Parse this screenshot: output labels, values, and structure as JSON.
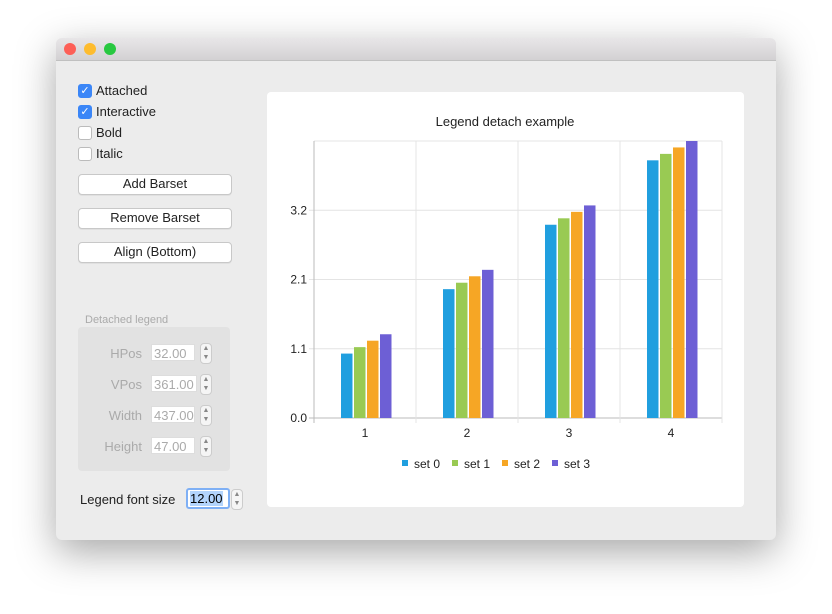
{
  "controls": {
    "checkboxes": [
      {
        "label": "Attached",
        "checked": true
      },
      {
        "label": "Interactive",
        "checked": true
      },
      {
        "label": "Bold",
        "checked": false
      },
      {
        "label": "Italic",
        "checked": false
      }
    ],
    "buttons": [
      "Add Barset",
      "Remove Barset",
      "Align (Bottom)"
    ],
    "detached_legend": {
      "title": "Detached legend",
      "fields": [
        {
          "label": "HPos",
          "value": "32.00"
        },
        {
          "label": "VPos",
          "value": "361.00"
        },
        {
          "label": "Width",
          "value": "437.00"
        },
        {
          "label": "Height",
          "value": "47.00"
        }
      ]
    },
    "font_size": {
      "label": "Legend font size",
      "value": "12.00"
    }
  },
  "chart_data": {
    "type": "bar",
    "title": "Legend detach example",
    "categories": [
      "1",
      "2",
      "3",
      "4"
    ],
    "series": [
      {
        "name": "set 0",
        "values": [
          1.0,
          2.0,
          3.0,
          4.0
        ],
        "color": "#209fdf"
      },
      {
        "name": "set 1",
        "values": [
          1.1,
          2.1,
          3.1,
          4.1
        ],
        "color": "#99ca53"
      },
      {
        "name": "set 2",
        "values": [
          1.2,
          2.2,
          3.2,
          4.2
        ],
        "color": "#f6a625"
      },
      {
        "name": "set 3",
        "values": [
          1.3,
          2.3,
          3.3,
          4.3
        ],
        "color": "#6d5fd5"
      }
    ],
    "ylim": [
      0,
      4.3
    ],
    "yticks": [
      "0.0",
      "1.1",
      "2.1",
      "3.2"
    ],
    "grid": true,
    "legend": "bottom"
  }
}
